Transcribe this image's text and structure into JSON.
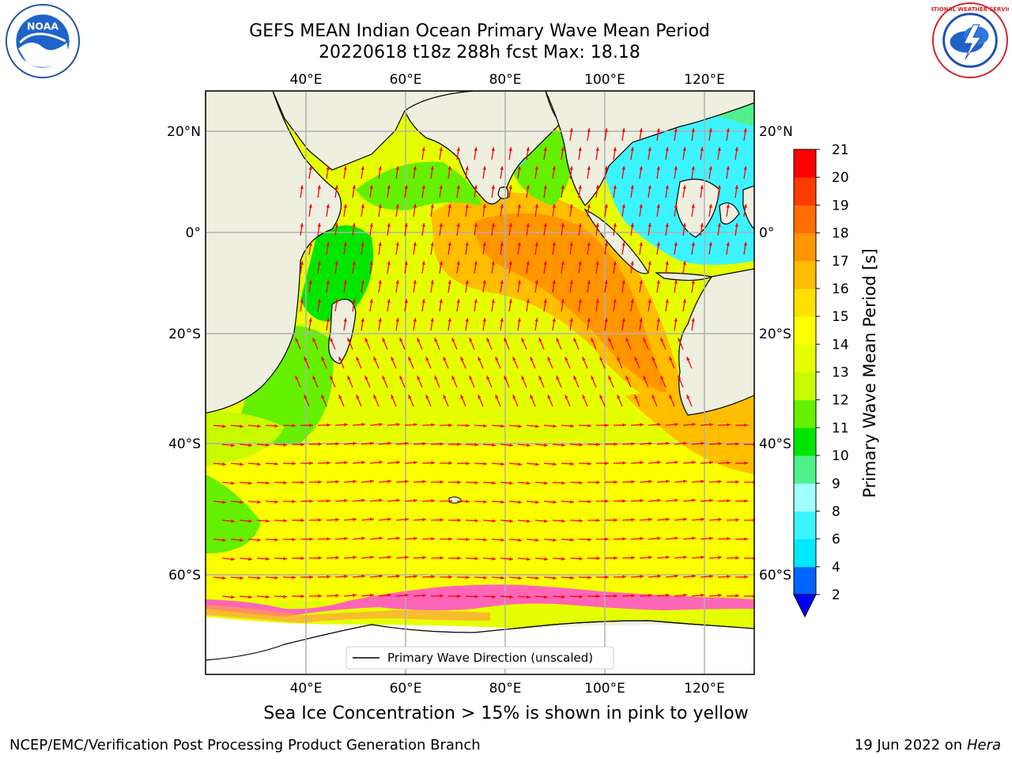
{
  "title_line1": "GEFS MEAN Indian Ocean Primary Wave Mean Period",
  "title_line2": "20220618 t18z 288h fcst   Max: 18.18",
  "lon_ticks": [
    "40°E",
    "60°E",
    "80°E",
    "100°E",
    "120°E"
  ],
  "lat_ticks": [
    "20°N",
    "0°",
    "20°S",
    "40°S",
    "60°S"
  ],
  "legend_label": "Primary Wave Direction (unscaled)",
  "colorbar": {
    "label": "Primary Wave Mean Period [s]",
    "ticks": [
      "2",
      "4",
      "6",
      "8",
      "9",
      "10",
      "11",
      "12",
      "13",
      "14",
      "15",
      "16",
      "17",
      "18",
      "19",
      "20",
      "21"
    ],
    "colors": [
      "#0064ff",
      "#00e8ff",
      "#3cf4ff",
      "#a0ffff",
      "#50f08c",
      "#00e600",
      "#64f000",
      "#c8fa00",
      "#e6ff00",
      "#ffff00",
      "#ffe100",
      "#ffbe00",
      "#ff9600",
      "#ff6e00",
      "#ff3c00",
      "#ff0000"
    ],
    "under_color": "#0000ff"
  },
  "caption": "Sea Ice Concentration > 15% is shown in pink to yellow",
  "footer_left": "NCEP/EMC/Verification Post Processing Product Generation Branch",
  "footer_date": "19 Jun 2022 on",
  "footer_machine": "Hera",
  "logos": {
    "left": "NOAA",
    "right": "NATIONAL WEATHER SERVICE"
  },
  "colors": {
    "land": "#efefe0",
    "arrows": "#ff0000",
    "ice": "#ff55cc"
  }
}
